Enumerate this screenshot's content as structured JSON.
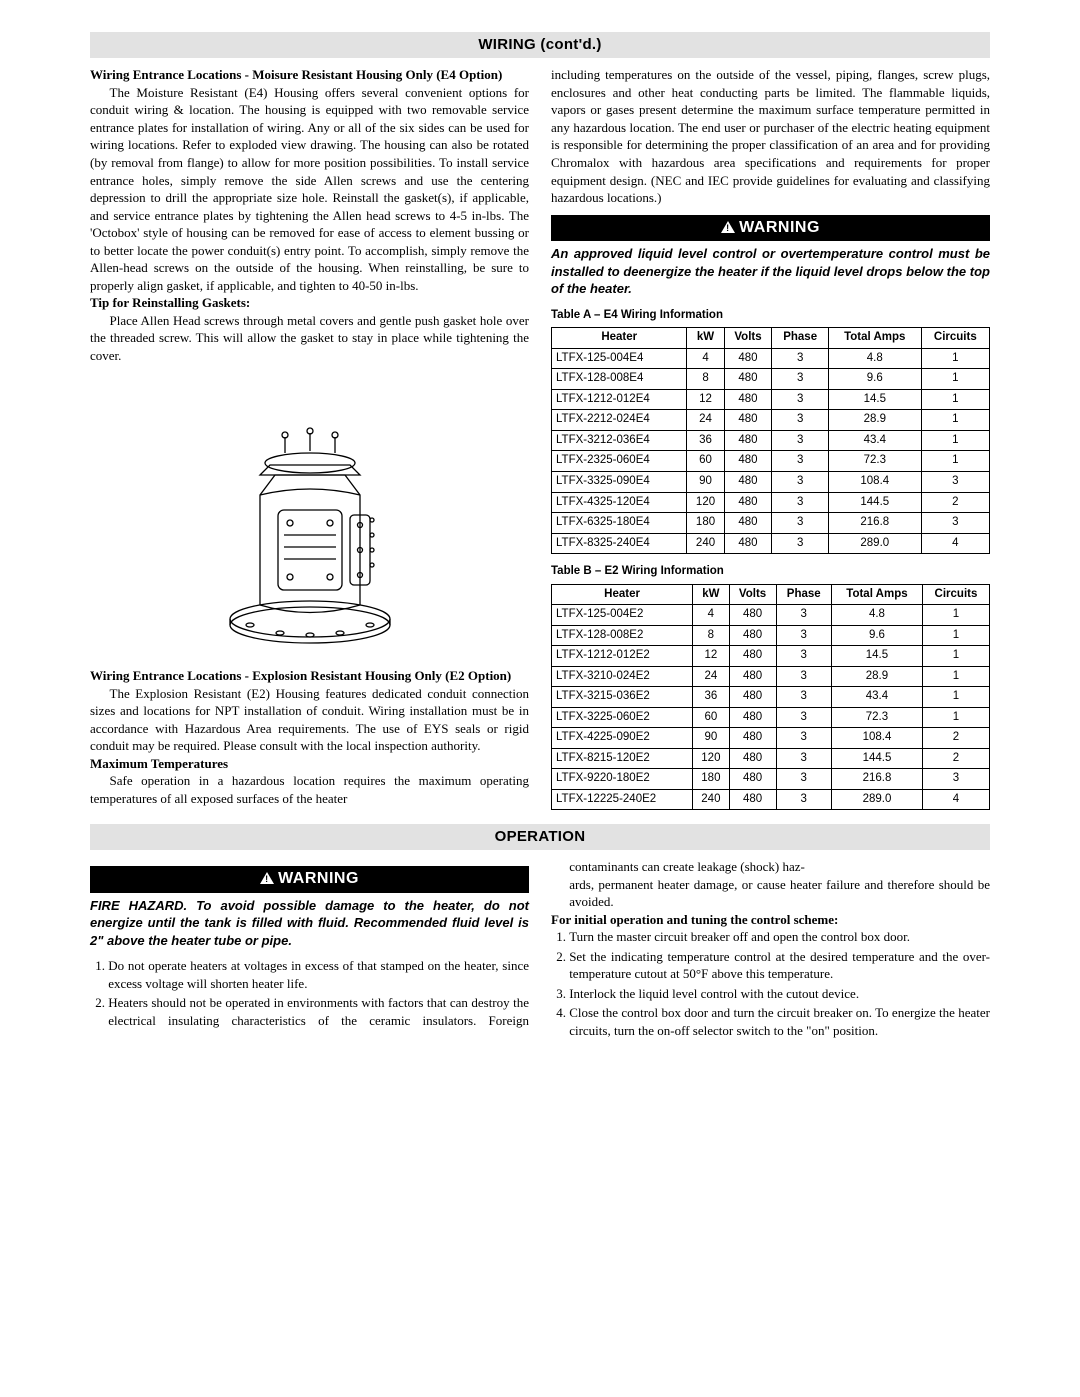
{
  "section_wiring_title": "WIRING (cont'd.)",
  "left": {
    "h1": "Wiring Entrance Locations - Moisure Resistant Housing Only (E4 Option)",
    "p1": "The Moisture Resistant (E4) Housing offers several convenient options for conduit wiring & location. The housing is equipped with two removable service entrance plates for installation of wiring. Any or all of the six sides can be used for wiring locations. Refer to exploded view drawing. The housing can also be rotated (by removal from flange) to allow for more position possibilities. To install service entrance holes, simply remove the side Allen screws and use the centering depression to drill the appropriate size hole. Reinstall the gasket(s), if applicable, and service entrance plates by tightening the Allen head screws to 4-5 in-lbs. The 'Octobox' style of housing can be removed for ease of access to element bussing or to better locate the power conduit(s) entry point. To accomplish, simply remove the Allen-head screws on the outside of the housing. When reinstalling, be sure to properly align gasket, if applicable, and tighten to 40-50 in-lbs.",
    "h2": "Tip for Reinstalling Gaskets:",
    "p2": "Place Allen Head screws through metal covers and gentle push gasket hole over the threaded screw. This will allow the gasket to stay in place while tightening the cover.",
    "h3": "Wiring Entrance Locations - Explosion Resistant Housing Only (E2 Option)",
    "p3": "The Explosion Resistant (E2) Housing features dedicated conduit connection sizes and locations for NPT installation of conduit.  Wiring installation must be in accordance with Hazardous Area requirements.  The use of EYS seals or rigid conduit may be required.  Please consult with the local inspection authority.",
    "h4": "Maximum Temperatures",
    "p4": "Safe operation in a hazardous location requires the maximum operating temperatures of all exposed surfaces of the heater"
  },
  "right": {
    "p1": "including temperatures on the outside of the vessel, piping, flanges, screw plugs, enclosures and other heat conducting parts be limited. The flammable liquids, vapors or gases present determine the maximum surface temperature permitted in any hazardous location. The end user or purchaser of the electric heating equipment is responsible for determining the proper classification of an area and for providing Chromalox with hazardous area specifications and requirements for proper equipment design. (NEC and IEC provide guidelines for evaluating and classifying hazardous locations.)",
    "warning_label": "WARNING",
    "warning_text": "An approved liquid level control or overtemperature control must be installed to deenergize the heater if the liquid level drops below the top of the heater.",
    "tableA_title": "Table A – E4 Wiring Information",
    "tableB_title": "Table B – E2 Wiring Information",
    "columns": [
      "Heater",
      "kW",
      "Volts",
      "Phase",
      "Total Amps",
      "Circuits"
    ],
    "tableA_rows": [
      [
        "LTFX-125-004E4",
        "4",
        "480",
        "3",
        "4.8",
        "1"
      ],
      [
        "LTFX-128-008E4",
        "8",
        "480",
        "3",
        "9.6",
        "1"
      ],
      [
        "LTFX-1212-012E4",
        "12",
        "480",
        "3",
        "14.5",
        "1"
      ],
      [
        "LTFX-2212-024E4",
        "24",
        "480",
        "3",
        "28.9",
        "1"
      ],
      [
        "LTFX-3212-036E4",
        "36",
        "480",
        "3",
        "43.4",
        "1"
      ],
      [
        "LTFX-2325-060E4",
        "60",
        "480",
        "3",
        "72.3",
        "1"
      ],
      [
        "LTFX-3325-090E4",
        "90",
        "480",
        "3",
        "108.4",
        "3"
      ],
      [
        "LTFX-4325-120E4",
        "120",
        "480",
        "3",
        "144.5",
        "2"
      ],
      [
        "LTFX-6325-180E4",
        "180",
        "480",
        "3",
        "216.8",
        "3"
      ],
      [
        "LTFX-8325-240E4",
        "240",
        "480",
        "3",
        "289.0",
        "4"
      ]
    ],
    "tableB_rows": [
      [
        "LTFX-125-004E2",
        "4",
        "480",
        "3",
        "4.8",
        "1"
      ],
      [
        "LTFX-128-008E2",
        "8",
        "480",
        "3",
        "9.6",
        "1"
      ],
      [
        "LTFX-1212-012E2",
        "12",
        "480",
        "3",
        "14.5",
        "1"
      ],
      [
        "LTFX-3210-024E2",
        "24",
        "480",
        "3",
        "28.9",
        "1"
      ],
      [
        "LTFX-3215-036E2",
        "36",
        "480",
        "3",
        "43.4",
        "1"
      ],
      [
        "LTFX-3225-060E2",
        "60",
        "480",
        "3",
        "72.3",
        "1"
      ],
      [
        "LTFX-4225-090E2",
        "90",
        "480",
        "3",
        "108.4",
        "2"
      ],
      [
        "LTFX-8215-120E2",
        "120",
        "480",
        "3",
        "144.5",
        "2"
      ],
      [
        "LTFX-9220-180E2",
        "180",
        "480",
        "3",
        "216.8",
        "3"
      ],
      [
        "LTFX-12225-240E2",
        "240",
        "480",
        "3",
        "289.0",
        "4"
      ]
    ]
  },
  "section_op_title": "OPERATION",
  "op": {
    "warning_label": "WARNING",
    "warning_text": "FIRE HAZARD. To avoid possible damage to the heater, do not energize until the tank is filled with fluid. Recommended fluid level is 2\" above the heater tube or pipe.",
    "list1": [
      "Do not operate heaters at voltages in excess of that stamped on the heater, since excess voltage will shorten heater life.",
      "Heaters should not be operated in environments with factors that can destroy the electrical insulating characteristics of the ceramic insulators. Foreign contaminants can create leakage (shock) haz-"
    ],
    "cont": "ards, permanent heater damage, or cause heater failure and therefore should be avoided.",
    "h1": "For initial operation and tuning the control scheme:",
    "list2": [
      "Turn the master circuit breaker off and open the control box door.",
      "Set the indicating temperature control at the desired temperature and the over-temperature cutout at 50°F above this temperature.",
      "Interlock the liquid level control with the cutout device.",
      "Close the control box door and turn the circuit breaker on. To energize the heater circuits, turn the on-off selector switch to the \"on\" position."
    ]
  }
}
